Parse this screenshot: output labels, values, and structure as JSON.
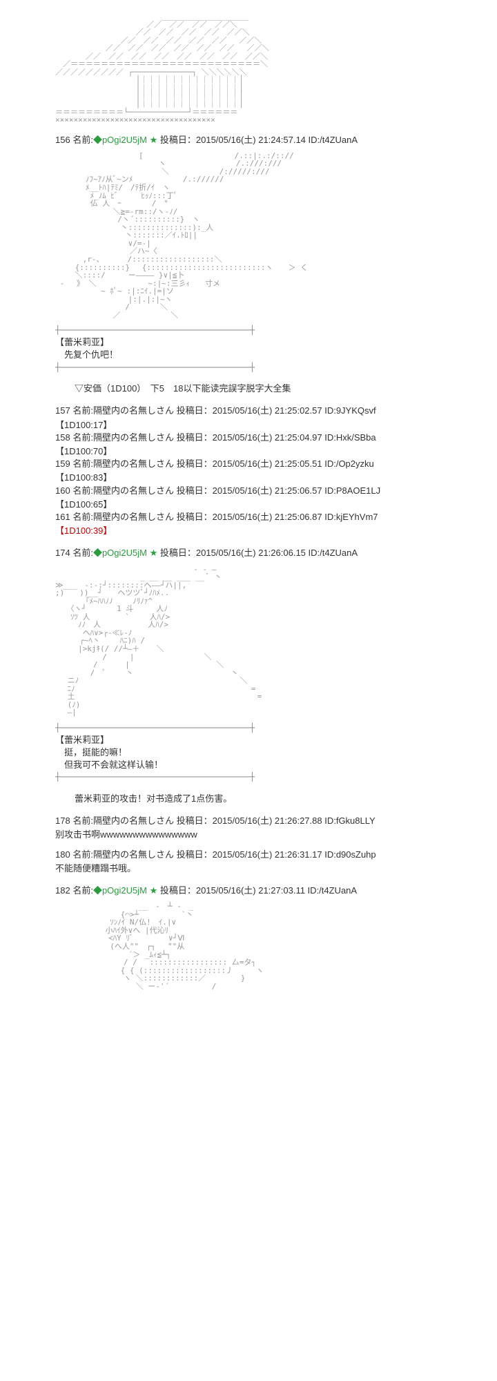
{
  "art": {
    "building": "　　　　　　　　　　　　　　___________________\n　　　　　　　　　　　　／／　／／　／／　／／＼\n　　　　　　 　　　　／／　／／　／／　／／　／／＼\n　　　　　　 　　／／　／／　／／　／／　／／　 ／／＼\n　 　　　　　／／　／／　／／　／／　／／　／／　 ／／＼\n　　　　／／　／／　／／　／／　／／　／／　／／　／／＼\n　／＝＝＝＝＝＝＝＝＝＝＝＝＝＝＝＝＝＝＝＝＝＝＝＝＝＼\n／／／／／／／／／ ┌─────────────┐ ＼＼＼＼＼＼\n　　　　　　　　　　 │｜｜｜｜｜｜｜｜｜｜｜｜｜│\n　　　　　　　　　　 │｜｜｜｜｜｜｜｜｜｜｜｜｜│\n　　　　　　　　　　 │｜｜｜｜｜｜｜｜｜｜｜｜｜│\n　　　　　　　　　　 │｜｜｜｜｜｜｜｜｜｜｜｜｜│\n＝＝＝＝＝＝＝＝＝└─────────────┘＝＝＝＝＝＝\n×××××××××××××××××××××××××××××××××××",
    "remilia1": "　　　　　　　　　　　[　　　　　　　　　　　　/.::|:.:/:://\n　　　　　　　　　　　 　　ヽ　　　　　　　 　 /.:///:///\n　　　　　　　　　　　　　　＼　　　　　 　/://///:///\n　　　　ﾉﾌ~ｱﾉ从ﾞ~ンﾒ　　　　　　 /.://////\n　　　　ﾒ__ﾄﾊ|ﾃﾐ/　/ﾃ折/ｲ　ヽ\n　　　　 ﾒ_ﾉﾑ ﾋﾞ　　　ﾋｯﾉ:::丁ﾟ\n　　　　 仏 人　ｰ　　　　/　\"\n　　　 　　　　＼≧=-rm::/ヽ-ﾉ/\n　　　　　 　　 /ヽ´::::::::::}　ヽ\n　　　　　　 　　丶::::::::::::::):_人\n　　　　　　 　　 丶:::::::／ｲ.ﾄﾛ||\n　　　　　　 　　　∨/=-|\n　　　　 　 　　　 ／ハ~〈\n　　　 ,r-、　　　 /::::::::::::::::::＼\n　　 {::::::::::}　 {::::::::::::::::::::::::::ヽ　　＞ く\n　　 ＼::::/　　　ー―――― }∨|≦卜\n - 　》 ＼　　　 　 　 ~:|~:三彡ｨ　　寸メ\n　　　　　　~ ﾎﾟ~ :|:ﾆｲ.|=|ソ\n　　　　　　　　　 |:|.|:|~ヽ\n　　　　　　　 　 /　　　　＼\n　　　　　　　 ／　　　　　　 ＼",
    "remilia2": "　　　　　　　　　　　　　　 　 　　- - ―　\n　　　　　　　　　 　 _ __ __ ___ __ ﾞ 丶\n≫___　-:-:┘::::::::ヘ――┘ハ||,\n;)　　))__┘　　ヘツツﾞ┘ﾉﾊﾒ..\n　　　　「ﾒ~ﾊﾊﾉﾉ　　 ﾉﾘﾉｧ^\n　　〈ヽ┘　　　　1 斗　　　人ﾉ\n　　ｿﾂ 人　　　 　` 　　人ﾊ/>\n　　　ﾉﾉ　人　　　 　　 人ﾊ/>\n　　 　ヘﾊ∨>┌-≪ﾚ-ﾉ\n　 　 ┌~ﾍ丶　　 ﾊﾆ)ﾊ /\n　　　|>kjｷ(/ //┴―＋ 　 ＼\n　　　　 　 /　　　|　　　　　 　 　　＼\n　　　　　/　　　 |　　　　 　 　 　　　 ＼\n　　　　 /　ﾟ　　 丶　　　　　 　 　　　　 　丶\n　 ニﾉ　　　　　　　　 　　　　　　　　　　　　 ＼\n　 ﾆﾉ　　　　　　　　　 　　　　　　　　　　　　　 =\n　 土　　　　　　　　　　　　　　　　　　　　　　　　=\n　 (ﾉ)\n　 ―|",
    "remilia3": "　　　　　　　　　　　__　-　┴ -　_\n　　　　　　　　 {⌒>┴　　 　　　`丶\n　　　　　 　 ｿﾝﾉｲ N/仏!　ｲ.|∨\n　　　　　　 小ﾊｲ外∨へ |代沁ﾘ\n　　　　　　　≺ﾊY ﾘﾞ 　　　　∨┘Ⅵ\n　　　　　 　 (へ人\"\"　┌┐ 　\"\"从\n　　　　　　　　　 ´＞ _ﾑｨ≦┴┐\n　　　　　　　　　/ / 　::::::::::::::::: 厶=タ┐\n　　　　　　　　 { { (::::::::::::::::::丿　　　ヽ\n　　　　　　　　　ヽ ＼::::::::::::／　　　　 }\n　　　　　　　　　　 ＼ ー‐'´　　　　　 /"
  },
  "posts": [
    {
      "num": "156",
      "name_label": "名前:",
      "trip": "◆pOgi2U5jM",
      "star": "★",
      "meta": "投稿日：2015/05/16(土) 21:24:57.14 ID:/t4ZUanA",
      "dialogue_speaker": "【蕾米莉亚】",
      "dialogue_lines": [
        "　先复个仇吧！"
      ],
      "narration": "▽安価（1D100）　下5　18以下能读完誤字脱字大全集"
    },
    {
      "num": "157",
      "name": "隔壁内の名無しさん",
      "meta": "投稿日：2015/05/16(土) 21:25:02.57 ID:9JYKQsvf",
      "dice": "【1D100:17】"
    },
    {
      "num": "158",
      "name": "隔壁内の名無しさん",
      "meta": "投稿日：2015/05/16(土) 21:25:04.97 ID:Hxk/SBba",
      "dice": "【1D100:70】"
    },
    {
      "num": "159",
      "name": "隔壁内の名無しさん",
      "meta": "投稿日：2015/05/16(土) 21:25:05.51 ID:/Op2yzku",
      "dice": "【1D100:83】"
    },
    {
      "num": "160",
      "name": "隔壁内の名無しさん",
      "meta": "投稿日：2015/05/16(土) 21:25:06.57 ID:P8AOE1LJ",
      "dice": "【1D100:65】"
    },
    {
      "num": "161",
      "name": "隔壁内の名無しさん",
      "meta": "投稿日：2015/05/16(土) 21:25:06.87 ID:kjEYhVm7",
      "dice": "【1D100:39】",
      "dice_red": true
    },
    {
      "num": "174",
      "name_label": "名前:",
      "trip": "◆pOgi2U5jM",
      "star": "★",
      "meta": "投稿日：2015/05/16(土) 21:26:06.15 ID:/t4ZUanA",
      "dialogue_speaker": "【蕾米莉亚】",
      "dialogue_lines": [
        "　挺，挺能的嘛！",
        "　但我可不会就这样认输！"
      ],
      "narration": "蕾米莉亚的攻击！对书造成了1点伤害。"
    },
    {
      "num": "178",
      "name": "隔壁内の名無しさん",
      "meta": "投稿日：2015/05/16(土) 21:26:27.88 ID:fGku8LLY",
      "body": "别攻击书啊wwwwwwwwwwwwwww"
    },
    {
      "num": "180",
      "name": "隔壁内の名無しさん",
      "meta": "投稿日：2015/05/16(土) 21:26:31.17 ID:d90sZuhp",
      "body": "不能随便糟蹋书哦。"
    },
    {
      "num": "182",
      "name_label": "名前:",
      "trip": "◆pOgi2U5jM",
      "star": "★",
      "meta": "投稿日：2015/05/16(土) 21:27:03.11 ID:/t4ZUanA"
    }
  ],
  "labels": {
    "name_prefix": "名前:"
  }
}
